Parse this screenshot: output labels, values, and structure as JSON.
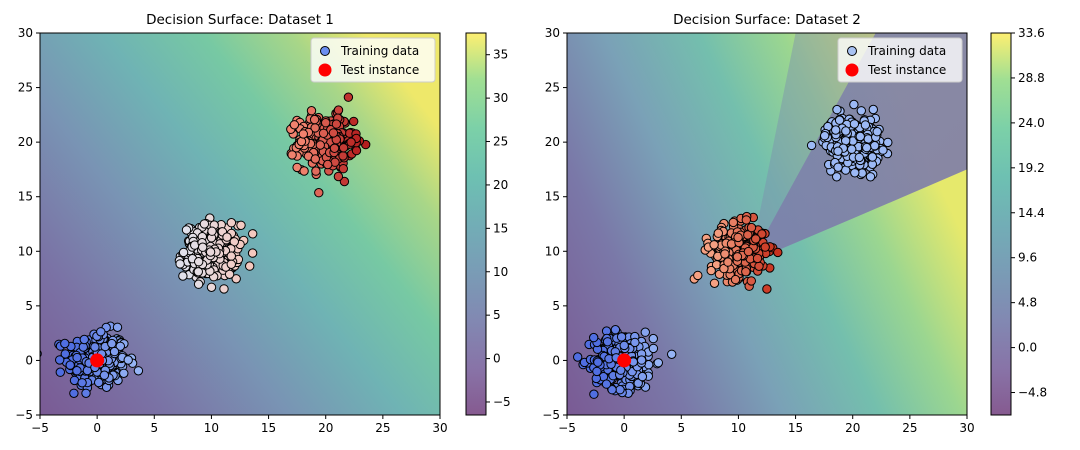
{
  "chart_data": [
    {
      "type": "scatter",
      "title": "Decision Surface: Dataset 1",
      "xlim": [
        -5,
        30
      ],
      "ylim": [
        -5,
        30
      ],
      "x_ticks": [
        -5,
        0,
        5,
        10,
        15,
        20,
        25,
        30
      ],
      "y_ticks": [
        -5,
        0,
        5,
        10,
        15,
        20,
        25,
        30
      ],
      "grid": false,
      "legend_position": "top-right",
      "background": "contour-filled decision surface (viridis, alpha blended)",
      "colorbar": {
        "min": -6.5,
        "max": 37.5,
        "ticks": [
          "−5",
          "0",
          "5",
          "10",
          "15",
          "20",
          "25",
          "30",
          "35"
        ],
        "tick_values": [
          -5,
          0,
          5,
          10,
          15,
          20,
          25,
          30,
          35
        ],
        "colormap": "viridis"
      },
      "clusters": [
        {
          "center": [
            0,
            0
          ],
          "spread": 1.3,
          "count": 320,
          "color": "#6a8ef0"
        },
        {
          "center": [
            10,
            10
          ],
          "spread": 1.2,
          "count": 300,
          "color": "#f2d2c4"
        },
        {
          "center": [
            20,
            20
          ],
          "spread": 1.2,
          "count": 320,
          "color": "#d9503f"
        }
      ],
      "test_instance": {
        "x": 0,
        "y": 0,
        "color": "#ff0000"
      },
      "legend": [
        {
          "label": "Training data",
          "color": "#6a8ef0",
          "marker": "circle-edge"
        },
        {
          "label": "Test instance",
          "color": "#ff0000",
          "marker": "circle"
        }
      ]
    },
    {
      "type": "scatter",
      "title": "Decision Surface: Dataset 2",
      "xlim": [
        -5,
        30
      ],
      "ylim": [
        -5,
        30
      ],
      "x_ticks": [
        -5,
        0,
        5,
        10,
        15,
        20,
        25,
        30
      ],
      "y_ticks": [
        -5,
        0,
        5,
        10,
        15,
        20,
        25,
        30
      ],
      "grid": false,
      "legend_position": "top-right",
      "background": "contour-filled decision surface (viridis, alpha blended)",
      "colorbar": {
        "min": -7.2,
        "max": 33.6,
        "ticks": [
          "−4.8",
          "0.0",
          "4.8",
          "9.6",
          "14.4",
          "19.2",
          "24.0",
          "28.8",
          "33.6"
        ],
        "tick_values": [
          -4.8,
          0.0,
          4.8,
          9.6,
          14.4,
          19.2,
          24.0,
          28.8,
          33.6
        ],
        "colormap": "viridis"
      },
      "clusters": [
        {
          "center": [
            0,
            0
          ],
          "spread": 1.3,
          "count": 320,
          "color": "#7b9ff5"
        },
        {
          "center": [
            10,
            10
          ],
          "spread": 1.2,
          "count": 300,
          "color": "#e87a60"
        },
        {
          "center": [
            20,
            20
          ],
          "spread": 1.2,
          "count": 320,
          "color": "#9cb9f5"
        }
      ],
      "test_instance": {
        "x": 0,
        "y": 0,
        "color": "#ff0000"
      },
      "legend": [
        {
          "label": "Training data",
          "color": "#a8c2f2",
          "marker": "circle-edge"
        },
        {
          "label": "Test instance",
          "color": "#ff0000",
          "marker": "circle"
        }
      ]
    }
  ]
}
